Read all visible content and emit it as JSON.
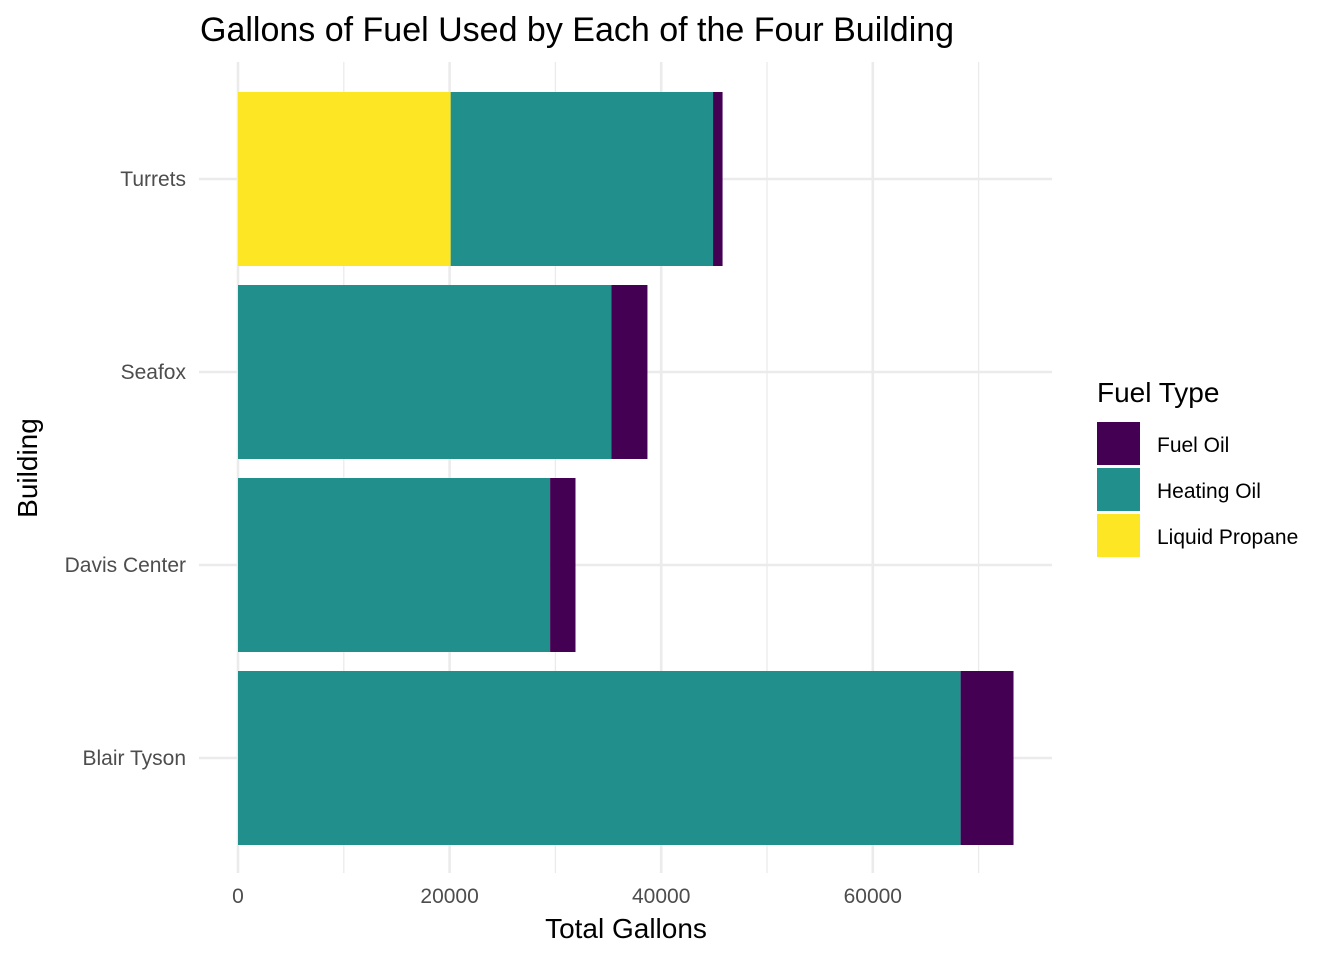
{
  "chart_data": {
    "type": "bar",
    "orientation": "horizontal",
    "stacked": true,
    "title": "Gallons of Fuel Used by Each of the Four Building",
    "xlabel": "Total Gallons",
    "ylabel": "Building",
    "categories": [
      "Blair Tyson",
      "Davis Center",
      "Seafox",
      "Turrets"
    ],
    "xlim": [
      0,
      76900
    ],
    "xticks": [
      0,
      20000,
      40000,
      60000
    ],
    "xtick_labels": [
      "0",
      "20000",
      "40000",
      "60000"
    ],
    "grid": true,
    "legend": {
      "title": "Fuel Type",
      "position": "right",
      "entries": [
        "Fuel Oil",
        "Heating Oil",
        "Liquid Propane"
      ]
    },
    "stack_order": [
      "Liquid Propane",
      "Heating Oil",
      "Fuel Oil"
    ],
    "series": [
      {
        "name": "Fuel Oil",
        "color": "#440154",
        "values": [
          5000,
          2400,
          3400,
          900
        ]
      },
      {
        "name": "Heating Oil",
        "color": "#21908C",
        "values": [
          68300,
          29500,
          35300,
          24800
        ]
      },
      {
        "name": "Liquid Propane",
        "color": "#FDE725",
        "values": [
          0,
          0,
          0,
          20100
        ]
      }
    ]
  }
}
